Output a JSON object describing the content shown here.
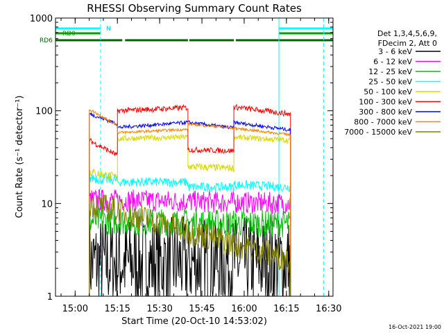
{
  "chart_data": {
    "type": "line",
    "title": "RHESSI Observing Summary Count Rates",
    "xlabel": "Start Time (20-Oct-10 14:53:02)",
    "ylabel": "Count Rate (s⁻¹ detector⁻¹)",
    "yscale": "log",
    "xlim_minutes_after_start": [
      0,
      98.5
    ],
    "ylim": [
      1,
      1000
    ],
    "x_ticks": [
      {
        "label": "15:00",
        "t": 6.97
      },
      {
        "label": "15:15",
        "t": 21.97
      },
      {
        "label": "15:30",
        "t": 36.97
      },
      {
        "label": "15:45",
        "t": 51.97
      },
      {
        "label": "16:00",
        "t": 66.97
      },
      {
        "label": "16:15",
        "t": 81.97
      },
      {
        "label": "16:30",
        "t": 96.97
      }
    ],
    "y_ticks": [
      {
        "label": "1",
        "v": 1
      },
      {
        "label": "10",
        "v": 10
      },
      {
        "label": "100",
        "v": 100
      },
      {
        "label": "1000",
        "v": 1000
      }
    ],
    "legend": {
      "position": "top-right",
      "header": [
        "Det 1,3,4,5,6,9,",
        "FDecim 2, Att 0"
      ]
    },
    "flags": [
      {
        "name": "RD0",
        "color": "#00a000",
        "segments": [
          [
            0,
            16
          ],
          [
            79.3,
            98.5
          ]
        ]
      },
      {
        "name": "RD6",
        "color": "#006400",
        "segments": [
          [
            0,
            23.7
          ],
          [
            24.7,
            47
          ],
          [
            47.5,
            63.3
          ],
          [
            64,
            98.5
          ]
        ]
      }
    ],
    "night_segments": [
      [
        0,
        16
      ],
      [
        79.3,
        98.5
      ]
    ],
    "night_label": "N",
    "cyan_lines": {
      "solid": [
        79.3
      ],
      "dashed": [
        16,
        95.2
      ]
    },
    "observation_window": [
      12,
      83.4
    ],
    "series": [
      {
        "name": "3 - 6 keV",
        "color": "#000000",
        "segments": [
          {
            "t": [
              12,
              83.4
            ],
            "v": [
              2.3,
              2.3
            ],
            "noise": 0.5
          }
        ]
      },
      {
        "name": "6 - 12 keV",
        "color": "#ff00ff",
        "segments": [
          {
            "t": [
              12,
              83.4
            ],
            "v": [
              11,
              10
            ],
            "noise": 0.12
          }
        ]
      },
      {
        "name": "12 - 25 keV",
        "color": "#00c000",
        "segments": [
          {
            "t": [
              12,
              83.4
            ],
            "v": [
              6.5,
              6
            ],
            "noise": 0.15
          }
        ]
      },
      {
        "name": "25 - 50 keV",
        "color": "#00ffff",
        "segments": [
          {
            "t": [
              12,
              22
            ],
            "v": [
              19,
              18
            ],
            "noise": 0.06
          },
          {
            "t": [
              22,
              47
            ],
            "v": [
              17,
              17
            ],
            "noise": 0.05
          },
          {
            "t": [
              47,
              63.3
            ],
            "v": [
              15,
              15
            ],
            "noise": 0.05
          },
          {
            "t": [
              63.3,
              83.4
            ],
            "v": [
              16,
              15
            ],
            "noise": 0.05
          }
        ]
      },
      {
        "name": "50 - 100 keV",
        "color": "#d8d800",
        "segments": [
          {
            "t": [
              12,
              22
            ],
            "v": [
              22,
              19
            ],
            "noise": 0.05
          },
          {
            "t": [
              22,
              47
            ],
            "v": [
              50,
              52
            ],
            "noise": 0.03
          },
          {
            "t": [
              47,
              63.3
            ],
            "v": [
              25,
              24
            ],
            "noise": 0.04
          },
          {
            "t": [
              63.3,
              83.4
            ],
            "v": [
              52,
              48
            ],
            "noise": 0.03
          }
        ]
      },
      {
        "name": "100 - 300 keV",
        "color": "#ff0000",
        "segments": [
          {
            "t": [
              12,
              22
            ],
            "v": [
              48,
              33
            ],
            "noise": 0.03
          },
          {
            "t": [
              22,
              47
            ],
            "v": [
              100,
              108
            ],
            "noise": 0.03
          },
          {
            "t": [
              47,
              63.3
            ],
            "v": [
              38,
              37
            ],
            "noise": 0.03
          },
          {
            "t": [
              63.3,
              83.4
            ],
            "v": [
              110,
              92
            ],
            "noise": 0.03
          }
        ]
      },
      {
        "name": "300 - 800 keV",
        "color": "#0000ff",
        "segments": [
          {
            "t": [
              12,
              22
            ],
            "v": [
              93,
              72
            ],
            "noise": 0.02
          },
          {
            "t": [
              22,
              47
            ],
            "v": [
              66,
              75
            ],
            "noise": 0.02
          },
          {
            "t": [
              47,
              63.3
            ],
            "v": [
              75,
              65
            ],
            "noise": 0.02
          },
          {
            "t": [
              63.3,
              83.4
            ],
            "v": [
              75,
              62
            ],
            "noise": 0.02
          }
        ]
      },
      {
        "name": "800 - 7000 keV",
        "color": "#ff8000",
        "segments": [
          {
            "t": [
              12,
              22
            ],
            "v": [
              104,
              70
            ],
            "noise": 0.015
          },
          {
            "t": [
              22,
              47
            ],
            "v": [
              58,
              63
            ],
            "noise": 0.015
          },
          {
            "t": [
              47,
              63.3
            ],
            "v": [
              72,
              65
            ],
            "noise": 0.015
          },
          {
            "t": [
              63.3,
              83.4
            ],
            "v": [
              65,
              55
            ],
            "noise": 0.015
          }
        ]
      },
      {
        "name": "7000 - 15000 keV",
        "color": "#808000",
        "segments": [
          {
            "t": [
              12,
              83.4
            ],
            "v": [
              10,
              2.5
            ],
            "noise": 0.15
          }
        ]
      }
    ],
    "timestamp": "16-Oct-2021 19:00"
  }
}
